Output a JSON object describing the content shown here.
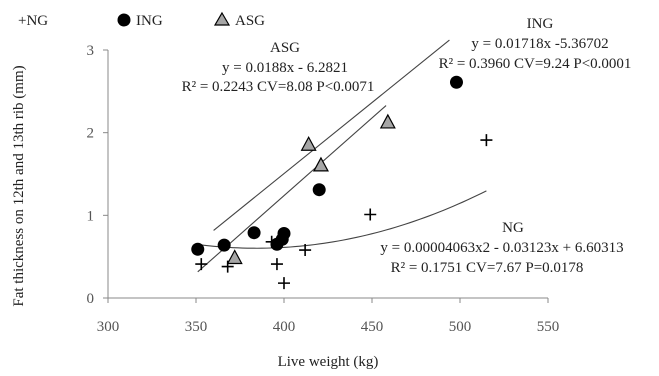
{
  "chart_data": {
    "type": "scatter",
    "xlabel": "Live weight (kg)",
    "ylabel": "Fat thickness on 12th and 13th rib (mm)",
    "xlim": [
      300,
      550
    ],
    "ylim": [
      0,
      3
    ],
    "xticks": [
      300,
      350,
      400,
      450,
      500,
      550
    ],
    "yticks": [
      0,
      1,
      2,
      3
    ],
    "grid": false,
    "legend": {
      "placement": "top-left",
      "entries": [
        "+NG",
        "ING",
        "ASG"
      ]
    },
    "series": [
      {
        "name": "NG",
        "marker": "plus",
        "points": [
          [
            353,
            0.41
          ],
          [
            368,
            0.38
          ],
          [
            393,
            0.68
          ],
          [
            396,
            0.41
          ],
          [
            400,
            0.18
          ],
          [
            412,
            0.58
          ],
          [
            449,
            1.01
          ],
          [
            515,
            1.91
          ]
        ],
        "trendline": {
          "type": "polynomial",
          "coef": [
            4.063e-05,
            -0.03123,
            6.60313
          ],
          "x_range": [
            352,
            515
          ]
        }
      },
      {
        "name": "ING",
        "marker": "circle",
        "points": [
          [
            351,
            0.59
          ],
          [
            366,
            0.64
          ],
          [
            383,
            0.79
          ],
          [
            396,
            0.65
          ],
          [
            399,
            0.71
          ],
          [
            400,
            0.78
          ],
          [
            420,
            1.31
          ],
          [
            498,
            2.61
          ]
        ],
        "trendline": {
          "type": "linear",
          "coef": [
            0.01718,
            -5.36702
          ],
          "x_range": [
            360,
            494
          ]
        }
      },
      {
        "name": "ASG",
        "marker": "triangle",
        "points": [
          [
            372,
            0.49
          ],
          [
            414,
            1.86
          ],
          [
            421,
            1.61
          ],
          [
            459,
            2.13
          ]
        ],
        "trendline": {
          "type": "linear",
          "coef": [
            0.0188,
            -6.2821
          ],
          "x_range": [
            351,
            458
          ]
        }
      }
    ],
    "annotations": {
      "asg": {
        "name": "ASG",
        "equation": "y = 0.0188x - 6.2821",
        "stats": "R² = 0.2243 CV=8.08 P<0.0071"
      },
      "ing": {
        "name": "ING",
        "equation": "y = 0.01718x -5.36702",
        "stats": "R² = 0.3960  CV=9.24 P<0.0001"
      },
      "ng": {
        "name": "NG",
        "equation": "y = 0.00004063x2 - 0.03123x + 6.60313",
        "stats": "R² = 0.1751 CV=7.67 P=0.0178"
      }
    },
    "colors": {
      "axis": "#888888",
      "marker": "#000000",
      "triangle_fill": "#a6a6a6",
      "trendline": "#444444"
    }
  }
}
